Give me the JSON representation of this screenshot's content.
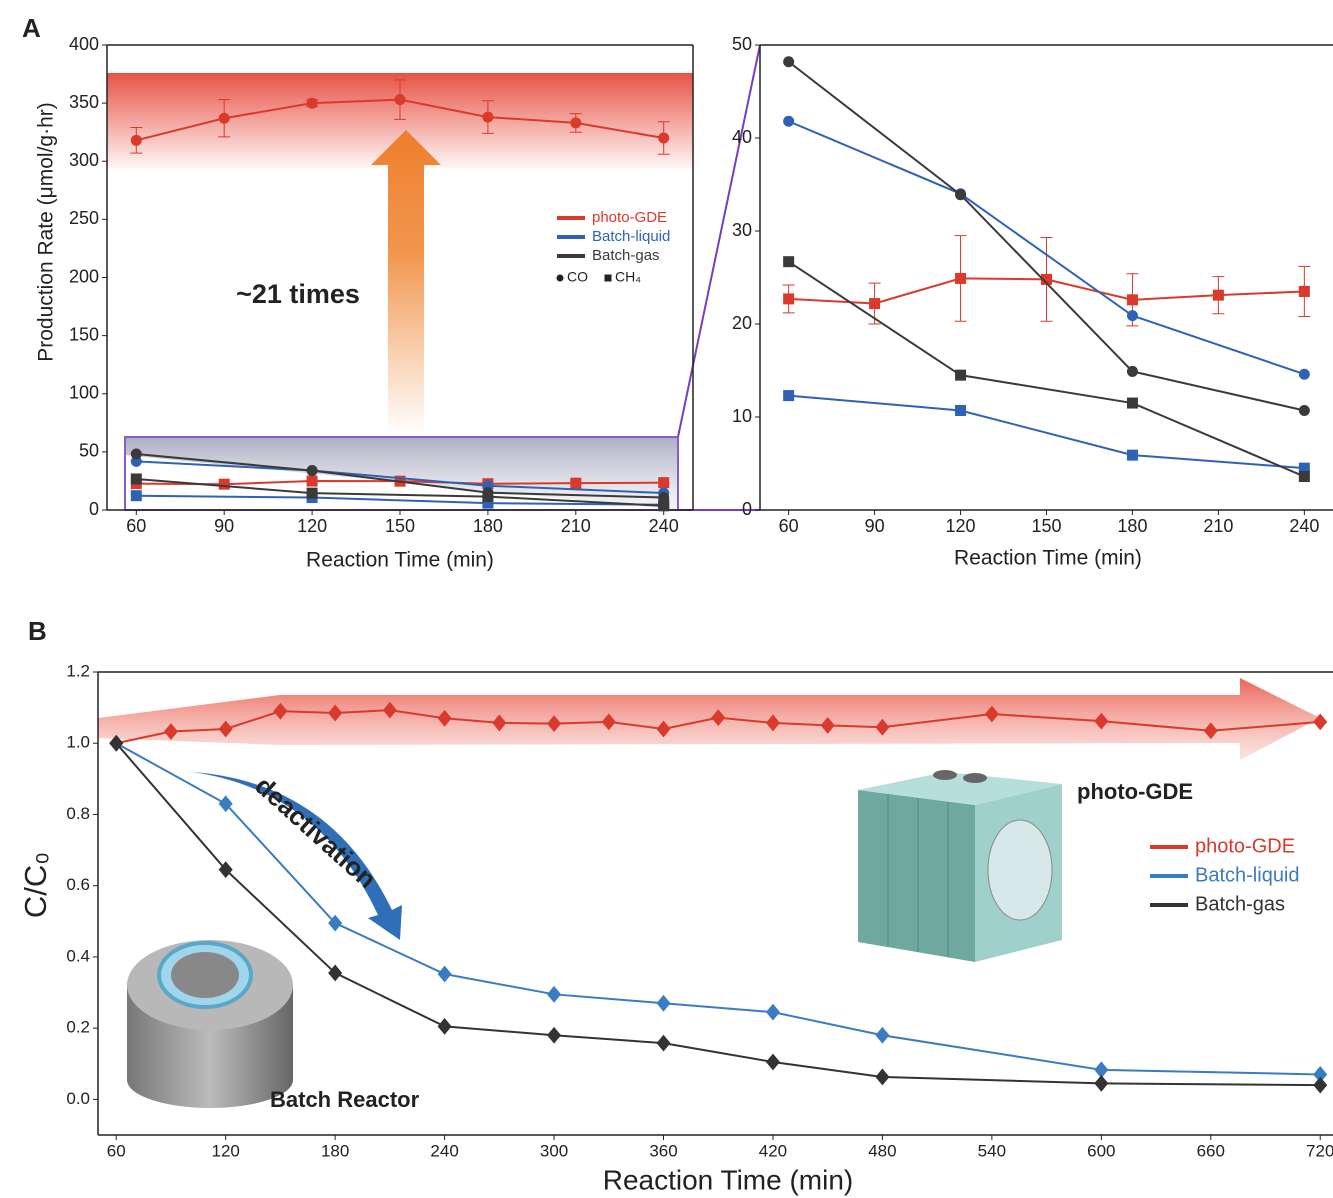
{
  "chart_data": [
    {
      "type": "line",
      "label": "A",
      "ylabel": "Production Rate (μmol/g·hr)",
      "xlabel": "Reaction Time (min)",
      "annotation": "~21 times",
      "xlim": [
        50,
        250
      ],
      "xticks": [
        60,
        90,
        120,
        150,
        180,
        210,
        240
      ],
      "ylim": [
        0,
        400
      ],
      "yticks": [
        0,
        50,
        100,
        150,
        200,
        250,
        300,
        350,
        400
      ],
      "markers": {
        "circle": "CO",
        "square": "CH₄"
      },
      "series": [
        {
          "name": "photo-GDE",
          "color": "#d93a2b",
          "marker": "circle",
          "x": [
            60,
            90,
            120,
            150,
            180,
            210,
            240
          ],
          "values": [
            318,
            337,
            350,
            353,
            338,
            333,
            320
          ],
          "errors": [
            11,
            16,
            3,
            17,
            14,
            8,
            14
          ]
        },
        {
          "color": "#d93a2b",
          "marker": "square",
          "x": [
            60,
            90,
            120,
            150,
            180,
            210,
            240
          ],
          "values": [
            22.7,
            22.2,
            24.9,
            24.8,
            22.6,
            23.1,
            23.5
          ]
        },
        {
          "name": "Batch-liquid",
          "color": "#2f62b5",
          "marker": "circle",
          "x": [
            60,
            120,
            180,
            240
          ],
          "values": [
            41.8,
            34,
            20.9,
            14.6
          ]
        },
        {
          "color": "#2f62b5",
          "marker": "square",
          "x": [
            60,
            120,
            180,
            240
          ],
          "values": [
            12.3,
            10.7,
            5.9,
            4.5
          ]
        },
        {
          "name": "Batch-gas",
          "color": "#3a3a3a",
          "marker": "circle",
          "x": [
            60,
            120,
            180,
            240
          ],
          "values": [
            48.2,
            33.9,
            14.9,
            10.7
          ]
        },
        {
          "color": "#3a3a3a",
          "marker": "square",
          "x": [
            60,
            120,
            180,
            240
          ],
          "values": [
            26.7,
            14.5,
            11.5,
            3.6
          ]
        }
      ]
    },
    {
      "type": "line",
      "xlabel": "Reaction Time (min)",
      "xlim": [
        50,
        250
      ],
      "xticks": [
        60,
        90,
        120,
        150,
        180,
        210,
        240
      ],
      "ylim": [
        0,
        50
      ],
      "yticks": [
        0,
        10,
        20,
        30,
        40,
        50
      ],
      "series": [
        {
          "color": "#d93a2b",
          "marker": "square",
          "x": [
            60,
            90,
            120,
            150,
            180,
            210,
            240
          ],
          "values": [
            22.7,
            22.2,
            24.9,
            24.8,
            22.6,
            23.1,
            23.5
          ],
          "errors": [
            1.5,
            2.2,
            4.6,
            4.5,
            2.8,
            2,
            2.7
          ]
        },
        {
          "color": "#2f62b5",
          "marker": "circle",
          "x": [
            60,
            120,
            180,
            240
          ],
          "values": [
            41.8,
            34,
            20.9,
            14.6
          ]
        },
        {
          "color": "#2f62b5",
          "marker": "square",
          "x": [
            60,
            120,
            180,
            240
          ],
          "values": [
            12.3,
            10.7,
            5.9,
            4.5
          ]
        },
        {
          "color": "#3a3a3a",
          "marker": "circle",
          "x": [
            60,
            120,
            180,
            240
          ],
          "values": [
            48.2,
            33.9,
            14.9,
            10.7
          ]
        },
        {
          "color": "#3a3a3a",
          "marker": "square",
          "x": [
            60,
            120,
            180,
            240
          ],
          "values": [
            26.7,
            14.5,
            11.5,
            3.6
          ]
        }
      ]
    },
    {
      "type": "line",
      "label": "B",
      "ylabel": "C/C₀",
      "xlabel": "Reaction Time (min)",
      "annotations": [
        "deactivation",
        "photo-GDE",
        "Batch Reactor"
      ],
      "xlim": [
        50,
        727
      ],
      "xticks": [
        60,
        120,
        180,
        240,
        300,
        360,
        420,
        480,
        540,
        600,
        660,
        720
      ],
      "ylim": [
        -0.1,
        1.2
      ],
      "yticks": [
        {
          "value": 0,
          "label": "0.0"
        },
        0.2,
        0.4,
        0.6,
        0.8,
        {
          "value": 1,
          "label": "1.0"
        },
        1.2
      ],
      "series": [
        {
          "name": "photo-GDE",
          "color": "#d93a2b",
          "marker": "diamond",
          "x": [
            60,
            90,
            120,
            150,
            180,
            210,
            240,
            270,
            300,
            330,
            360,
            390,
            420,
            450,
            480,
            540,
            600,
            660,
            720
          ],
          "values": [
            1.0,
            1.033,
            1.04,
            1.09,
            1.085,
            1.093,
            1.07,
            1.057,
            1.055,
            1.06,
            1.04,
            1.072,
            1.057,
            1.05,
            1.045,
            1.082,
            1.062,
            1.035,
            1.06
          ]
        },
        {
          "name": "Batch-liquid",
          "color": "#3a7cc2",
          "marker": "diamond",
          "x": [
            60,
            120,
            180,
            240,
            300,
            360,
            420,
            480,
            600,
            720
          ],
          "values": [
            1.0,
            0.83,
            0.495,
            0.352,
            0.295,
            0.27,
            0.245,
            0.18,
            0.083,
            0.07
          ]
        },
        {
          "name": "Batch-gas",
          "color": "#333333",
          "marker": "diamond",
          "x": [
            60,
            120,
            180,
            240,
            300,
            360,
            420,
            480,
            600,
            720
          ],
          "values": [
            1.0,
            0.645,
            0.355,
            0.205,
            0.18,
            0.158,
            0.105,
            0.063,
            0.045,
            0.04
          ]
        }
      ]
    }
  ]
}
